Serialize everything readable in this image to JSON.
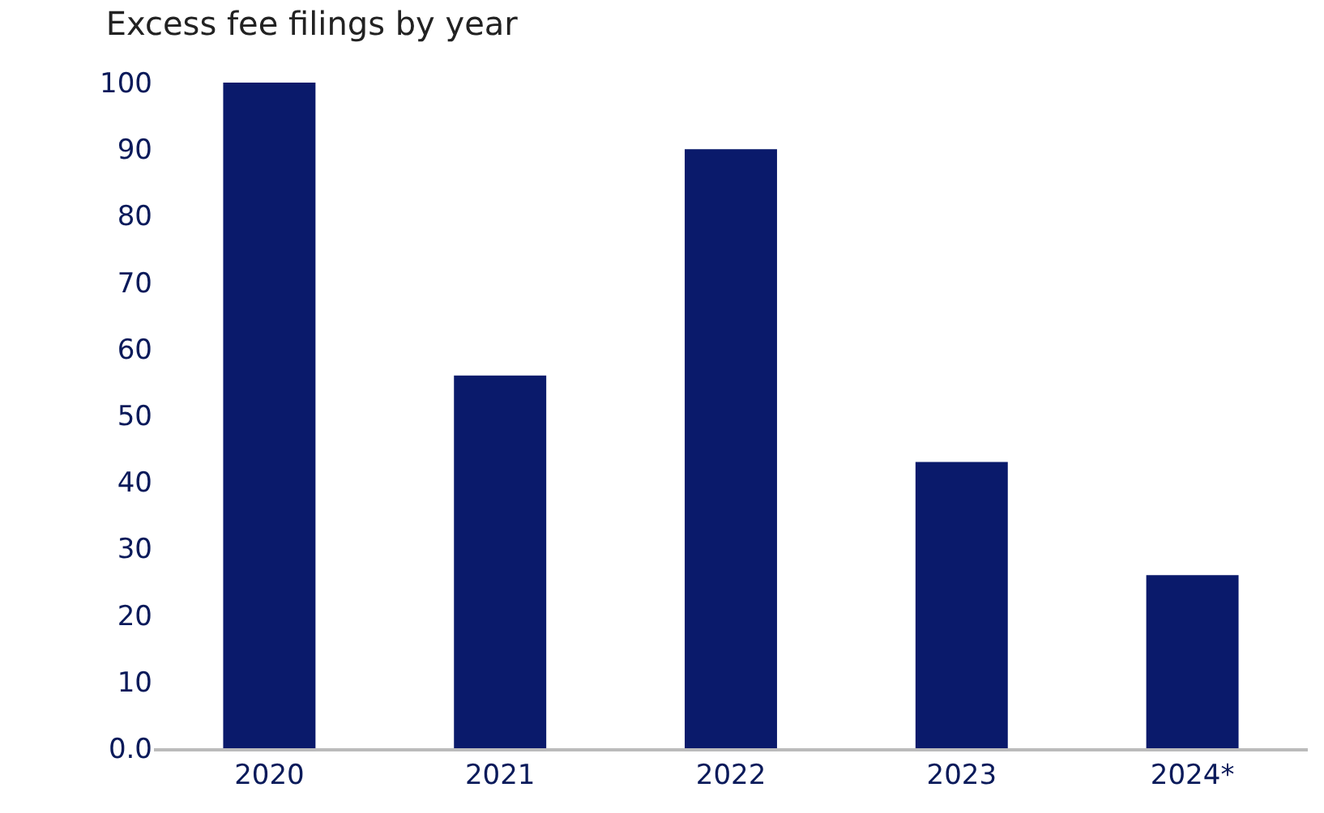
{
  "chart_data": {
    "type": "bar",
    "title": "Excess fee filings by year",
    "categories": [
      "2020",
      "2021",
      "2022",
      "2023",
      "2024*"
    ],
    "values": [
      100,
      56,
      90,
      43,
      26
    ],
    "color": "#0a1a6b",
    "ylim": [
      0,
      100
    ],
    "yticks": [
      {
        "value": 0,
        "label": "0.0"
      },
      10,
      20,
      30,
      40,
      50,
      60,
      70,
      80,
      90,
      100
    ],
    "grid": false,
    "legend": false
  }
}
